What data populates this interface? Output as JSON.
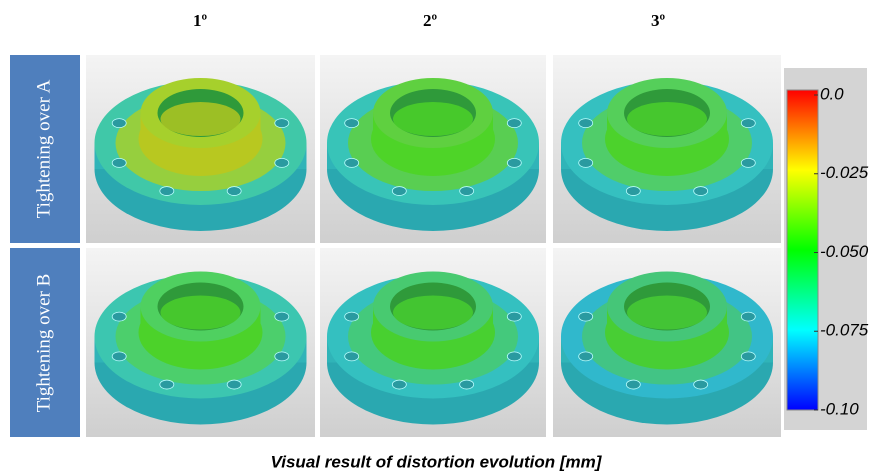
{
  "columns": [
    "1º",
    "2º",
    "3º"
  ],
  "rows": [
    "Tightening over A",
    "Tightening over B"
  ],
  "colorbar": {
    "range": [
      -0.1,
      0
    ],
    "ticks": [
      {
        "value": 0,
        "label": "0.0"
      },
      {
        "value": -0.025,
        "label": "-0.025"
      },
      {
        "value": -0.05,
        "label": "-0.050"
      },
      {
        "value": -0.075,
        "label": "-0.075"
      },
      {
        "value": -0.1,
        "label": "-0.10"
      }
    ]
  },
  "caption": "Visual result of distortion evolution [mm]"
}
